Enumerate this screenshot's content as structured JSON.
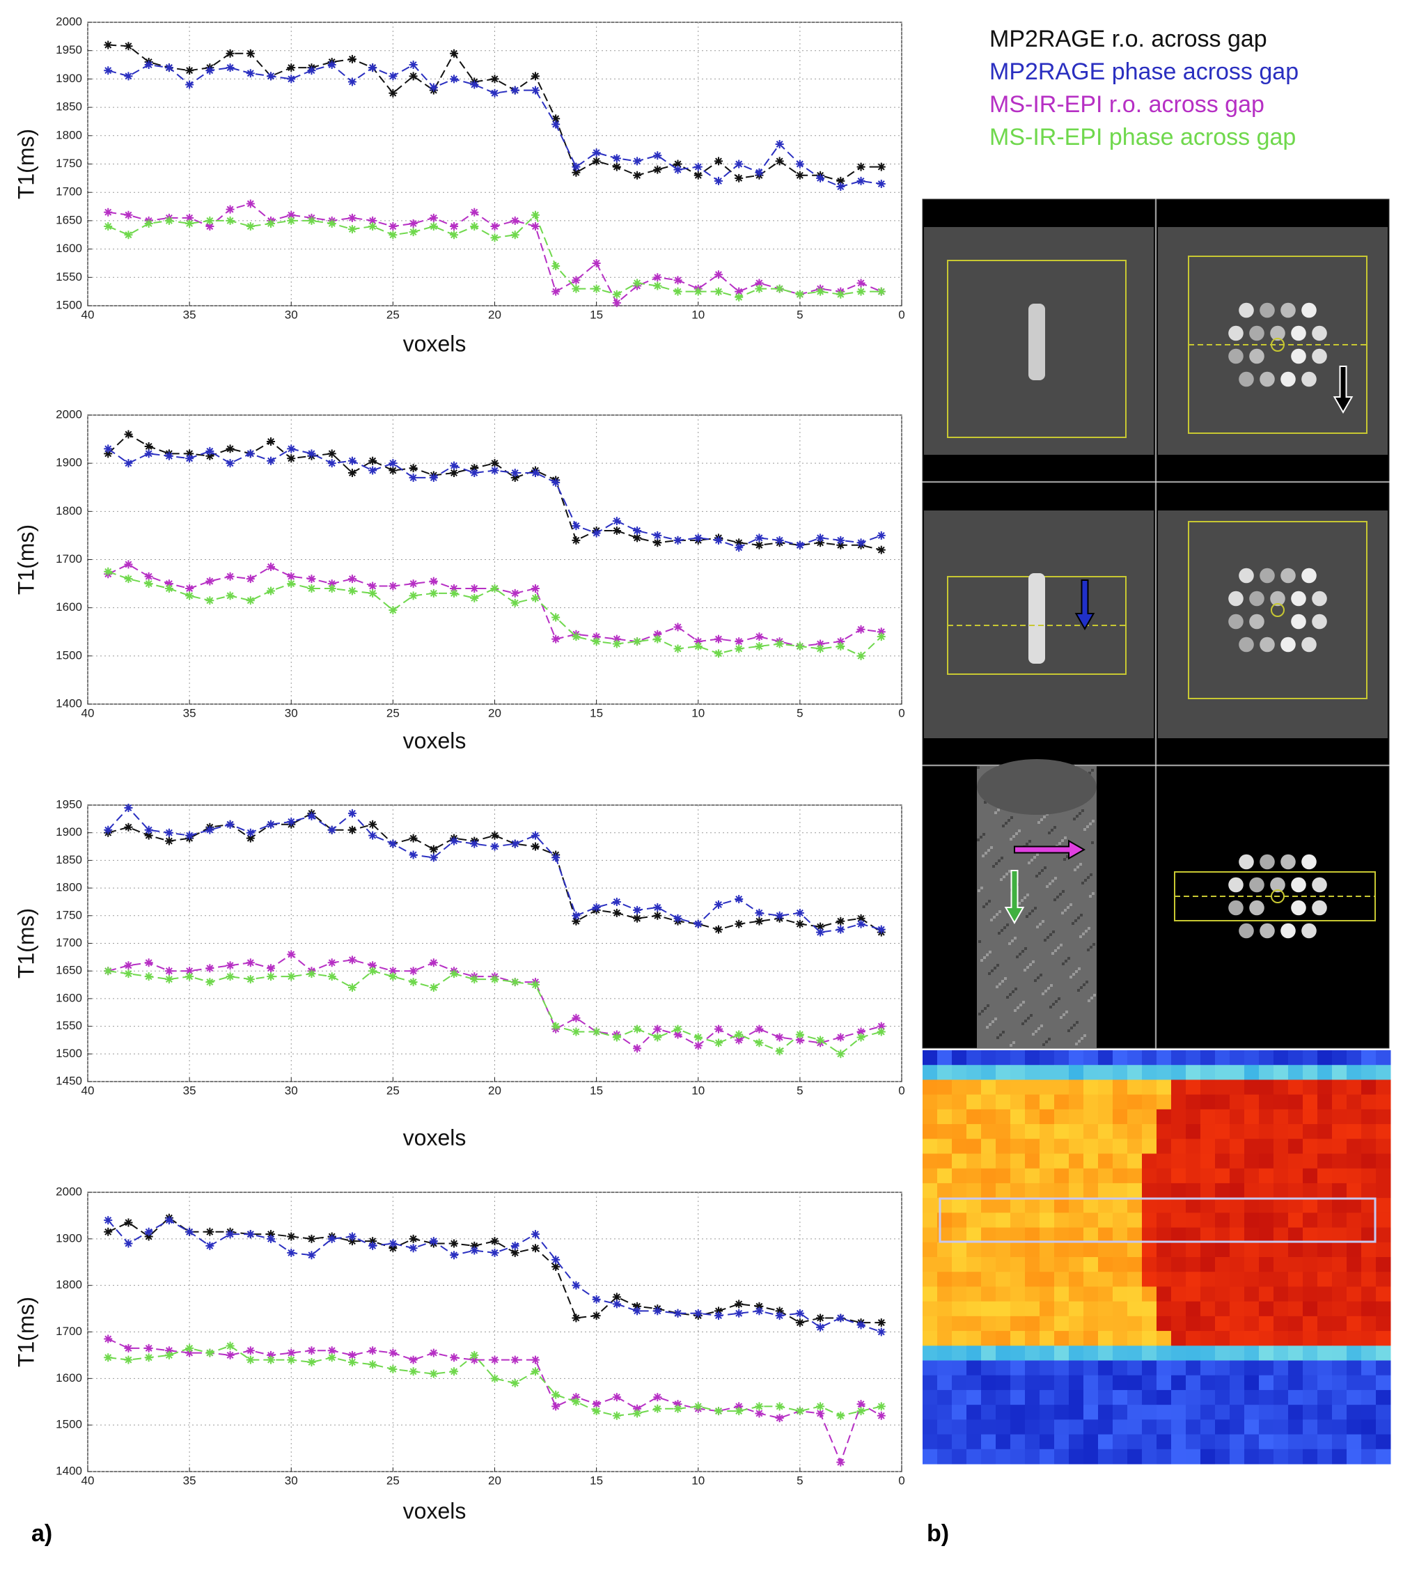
{
  "labels": {
    "a": "a)",
    "b": "b)"
  },
  "chart_data": [
    {
      "type": "scatter",
      "ylabel": "T1(ms)",
      "xlabel": "voxels",
      "xlim": [
        40,
        0
      ],
      "xticks": [
        40,
        35,
        30,
        25,
        20,
        15,
        10,
        5,
        0
      ],
      "ylim": [
        1500,
        2000
      ],
      "yticks": [
        1500,
        1550,
        1600,
        1650,
        1700,
        1750,
        1800,
        1850,
        1900,
        1950,
        2000
      ],
      "grid": true,
      "x": [
        39,
        38,
        37,
        36,
        35,
        34,
        33,
        32,
        31,
        30,
        29,
        28,
        27,
        26,
        25,
        24,
        23,
        22,
        21,
        20,
        19,
        18,
        17,
        16,
        15,
        14,
        13,
        12,
        11,
        10,
        9,
        8,
        7,
        6,
        5,
        4,
        3,
        2,
        1
      ],
      "series": [
        {
          "name": "MP2RAGE r.o. across gap",
          "color": "#111111",
          "values": [
            1960,
            1958,
            1930,
            1920,
            1915,
            1920,
            1945,
            1945,
            1905,
            1920,
            1920,
            1930,
            1935,
            1920,
            1875,
            1905,
            1880,
            1945,
            1895,
            1900,
            1880,
            1905,
            1830,
            1735,
            1755,
            1745,
            1730,
            1740,
            1750,
            1730,
            1755,
            1725,
            1730,
            1755,
            1730,
            1730,
            1720,
            1745,
            1745
          ]
        },
        {
          "name": "MP2RAGE phase across gap",
          "color": "#2a2fc0",
          "values": [
            1915,
            1905,
            1925,
            1920,
            1890,
            1915,
            1920,
            1910,
            1905,
            1900,
            1915,
            1925,
            1895,
            1920,
            1905,
            1925,
            1885,
            1900,
            1890,
            1875,
            1880,
            1880,
            1820,
            1745,
            1770,
            1760,
            1755,
            1765,
            1740,
            1745,
            1720,
            1750,
            1735,
            1785,
            1750,
            1725,
            1710,
            1720,
            1715
          ]
        },
        {
          "name": "MS-IR-EPI r.o. across gap",
          "color": "#b62fc4",
          "values": [
            1665,
            1660,
            1650,
            1655,
            1655,
            1640,
            1670,
            1680,
            1650,
            1660,
            1655,
            1650,
            1655,
            1650,
            1640,
            1645,
            1655,
            1640,
            1665,
            1640,
            1650,
            1640,
            1525,
            1545,
            1575,
            1505,
            1535,
            1550,
            1545,
            1530,
            1555,
            1525,
            1540,
            1530,
            1520,
            1530,
            1525,
            1540,
            1525
          ]
        },
        {
          "name": "MS-IR-EPI phase across gap",
          "color": "#6fd84c",
          "values": [
            1640,
            1625,
            1645,
            1650,
            1645,
            1650,
            1650,
            1640,
            1645,
            1650,
            1650,
            1645,
            1635,
            1640,
            1625,
            1630,
            1640,
            1625,
            1640,
            1620,
            1625,
            1660,
            1570,
            1530,
            1530,
            1520,
            1540,
            1535,
            1525,
            1525,
            1525,
            1515,
            1530,
            1530,
            1520,
            1525,
            1520,
            1525,
            1525
          ]
        }
      ]
    },
    {
      "type": "scatter",
      "ylabel": "T1(ms)",
      "xlabel": "voxels",
      "xlim": [
        40,
        0
      ],
      "xticks": [
        40,
        35,
        30,
        25,
        20,
        15,
        10,
        5,
        0
      ],
      "ylim": [
        1400,
        2000
      ],
      "yticks": [
        1400,
        1500,
        1600,
        1700,
        1800,
        1900,
        2000
      ],
      "grid": true,
      "x": [
        39,
        38,
        37,
        36,
        35,
        34,
        33,
        32,
        31,
        30,
        29,
        28,
        27,
        26,
        25,
        24,
        23,
        22,
        21,
        20,
        19,
        18,
        17,
        16,
        15,
        14,
        13,
        12,
        11,
        10,
        9,
        8,
        7,
        6,
        5,
        4,
        3,
        2,
        1
      ],
      "series": [
        {
          "color": "#111111",
          "values": [
            1920,
            1960,
            1935,
            1920,
            1920,
            1915,
            1930,
            1920,
            1945,
            1910,
            1915,
            1920,
            1880,
            1905,
            1885,
            1890,
            1875,
            1880,
            1890,
            1900,
            1870,
            1885,
            1865,
            1740,
            1760,
            1760,
            1745,
            1735,
            1740,
            1740,
            1745,
            1735,
            1730,
            1735,
            1730,
            1735,
            1730,
            1730,
            1720
          ]
        },
        {
          "color": "#2a2fc0",
          "values": [
            1930,
            1900,
            1920,
            1915,
            1910,
            1925,
            1900,
            1920,
            1905,
            1930,
            1920,
            1900,
            1905,
            1885,
            1900,
            1870,
            1870,
            1895,
            1880,
            1885,
            1880,
            1880,
            1860,
            1770,
            1755,
            1780,
            1760,
            1750,
            1740,
            1745,
            1740,
            1725,
            1745,
            1740,
            1730,
            1745,
            1740,
            1735,
            1750
          ]
        },
        {
          "color": "#b62fc4",
          "values": [
            1670,
            1690,
            1665,
            1650,
            1640,
            1655,
            1665,
            1660,
            1685,
            1665,
            1660,
            1650,
            1660,
            1645,
            1645,
            1650,
            1655,
            1640,
            1640,
            1640,
            1630,
            1640,
            1535,
            1545,
            1540,
            1535,
            1530,
            1545,
            1560,
            1530,
            1535,
            1530,
            1540,
            1530,
            1520,
            1525,
            1530,
            1555,
            1550
          ]
        },
        {
          "color": "#6fd84c",
          "values": [
            1675,
            1660,
            1650,
            1640,
            1625,
            1615,
            1625,
            1615,
            1635,
            1650,
            1640,
            1640,
            1635,
            1630,
            1595,
            1625,
            1630,
            1630,
            1620,
            1640,
            1610,
            1620,
            1580,
            1540,
            1530,
            1525,
            1530,
            1535,
            1515,
            1520,
            1505,
            1515,
            1520,
            1525,
            1520,
            1515,
            1520,
            1500,
            1540
          ]
        }
      ]
    },
    {
      "type": "scatter",
      "ylabel": "T1(ms)",
      "xlabel": "voxels",
      "xlim": [
        40,
        0
      ],
      "xticks": [
        40,
        35,
        30,
        25,
        20,
        15,
        10,
        5,
        0
      ],
      "ylim": [
        1450,
        1950
      ],
      "yticks": [
        1450,
        1500,
        1550,
        1600,
        1650,
        1700,
        1750,
        1800,
        1850,
        1900,
        1950
      ],
      "grid": true,
      "x": [
        39,
        38,
        37,
        36,
        35,
        34,
        33,
        32,
        31,
        30,
        29,
        28,
        27,
        26,
        25,
        24,
        23,
        22,
        21,
        20,
        19,
        18,
        17,
        16,
        15,
        14,
        13,
        12,
        11,
        10,
        9,
        8,
        7,
        6,
        5,
        4,
        3,
        2,
        1
      ],
      "series": [
        {
          "color": "#111111",
          "values": [
            1900,
            1910,
            1895,
            1885,
            1890,
            1910,
            1915,
            1890,
            1915,
            1915,
            1935,
            1905,
            1905,
            1915,
            1880,
            1890,
            1870,
            1890,
            1885,
            1895,
            1880,
            1875,
            1860,
            1740,
            1760,
            1755,
            1745,
            1750,
            1740,
            1735,
            1725,
            1735,
            1740,
            1745,
            1735,
            1730,
            1740,
            1745,
            1720
          ]
        },
        {
          "color": "#2a2fc0",
          "values": [
            1905,
            1945,
            1905,
            1900,
            1895,
            1905,
            1915,
            1900,
            1915,
            1920,
            1930,
            1905,
            1935,
            1895,
            1880,
            1860,
            1855,
            1885,
            1880,
            1875,
            1880,
            1895,
            1855,
            1750,
            1765,
            1775,
            1760,
            1765,
            1745,
            1735,
            1770,
            1780,
            1755,
            1750,
            1755,
            1720,
            1725,
            1735,
            1725
          ]
        },
        {
          "color": "#b62fc4",
          "values": [
            1650,
            1660,
            1665,
            1650,
            1650,
            1655,
            1660,
            1665,
            1655,
            1680,
            1650,
            1665,
            1670,
            1660,
            1650,
            1650,
            1665,
            1650,
            1640,
            1640,
            1630,
            1630,
            1545,
            1565,
            1540,
            1535,
            1510,
            1545,
            1535,
            1515,
            1545,
            1525,
            1545,
            1530,
            1525,
            1520,
            1530,
            1540,
            1550
          ]
        },
        {
          "color": "#6fd84c",
          "values": [
            1650,
            1645,
            1640,
            1635,
            1640,
            1630,
            1640,
            1635,
            1640,
            1640,
            1645,
            1640,
            1620,
            1650,
            1640,
            1630,
            1620,
            1645,
            1635,
            1635,
            1630,
            1625,
            1550,
            1540,
            1540,
            1530,
            1545,
            1530,
            1545,
            1530,
            1520,
            1535,
            1520,
            1505,
            1535,
            1525,
            1500,
            1530,
            1540
          ]
        }
      ]
    },
    {
      "type": "scatter",
      "ylabel": "T1(ms)",
      "xlabel": "voxels",
      "xlim": [
        40,
        0
      ],
      "xticks": [
        40,
        35,
        30,
        25,
        20,
        15,
        10,
        5,
        0
      ],
      "ylim": [
        1400,
        2000
      ],
      "yticks": [
        1400,
        1500,
        1600,
        1700,
        1800,
        1900,
        2000
      ],
      "grid": true,
      "x": [
        39,
        38,
        37,
        36,
        35,
        34,
        33,
        32,
        31,
        30,
        29,
        28,
        27,
        26,
        25,
        24,
        23,
        22,
        21,
        20,
        19,
        18,
        17,
        16,
        15,
        14,
        13,
        12,
        11,
        10,
        9,
        8,
        7,
        6,
        5,
        4,
        3,
        2,
        1
      ],
      "series": [
        {
          "color": "#111111",
          "values": [
            1915,
            1935,
            1905,
            1945,
            1915,
            1915,
            1915,
            1910,
            1910,
            1905,
            1900,
            1905,
            1895,
            1895,
            1880,
            1900,
            1890,
            1890,
            1885,
            1895,
            1870,
            1880,
            1840,
            1730,
            1735,
            1775,
            1755,
            1750,
            1740,
            1735,
            1745,
            1760,
            1755,
            1745,
            1720,
            1730,
            1730,
            1720,
            1720
          ]
        },
        {
          "color": "#2a2fc0",
          "values": [
            1940,
            1890,
            1915,
            1940,
            1915,
            1885,
            1910,
            1910,
            1900,
            1870,
            1865,
            1900,
            1905,
            1885,
            1890,
            1880,
            1895,
            1865,
            1875,
            1870,
            1885,
            1910,
            1855,
            1800,
            1770,
            1760,
            1745,
            1745,
            1740,
            1740,
            1735,
            1740,
            1745,
            1735,
            1740,
            1710,
            1730,
            1715,
            1700
          ]
        },
        {
          "color": "#b62fc4",
          "values": [
            1685,
            1665,
            1665,
            1660,
            1655,
            1655,
            1650,
            1660,
            1650,
            1655,
            1660,
            1660,
            1650,
            1660,
            1655,
            1640,
            1655,
            1645,
            1640,
            1640,
            1640,
            1640,
            1540,
            1560,
            1545,
            1560,
            1535,
            1560,
            1545,
            1535,
            1530,
            1540,
            1525,
            1515,
            1530,
            1525,
            1420,
            1545,
            1520
          ]
        },
        {
          "color": "#6fd84c",
          "values": [
            1645,
            1640,
            1645,
            1650,
            1665,
            1655,
            1670,
            1640,
            1640,
            1640,
            1635,
            1645,
            1635,
            1630,
            1620,
            1615,
            1610,
            1615,
            1650,
            1600,
            1590,
            1615,
            1565,
            1550,
            1530,
            1520,
            1525,
            1535,
            1535,
            1540,
            1530,
            1530,
            1540,
            1540,
            1530,
            1540,
            1520,
            1530,
            1540
          ]
        }
      ]
    }
  ]
}
